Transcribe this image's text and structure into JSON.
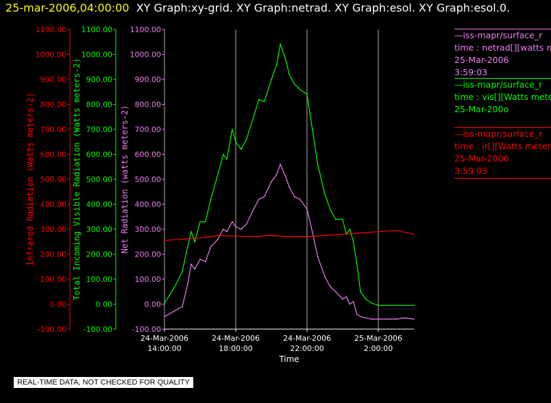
{
  "header": {
    "timestamp": "25-mar-2006,04:00:00",
    "graphs": "XY Graph:xy-grid.  XY Graph:netrad.  XY Graph:esol.  XY Graph:esol.0."
  },
  "legend": [
    {
      "line1": "—iss-mapr/surface_r",
      "line2": "time : netrad[][watts m",
      "line3": "25-Mar-2006",
      "line4": "3:59:03",
      "color": "#ee82ee"
    },
    {
      "line1": "—iss-mapr/surface_r",
      "line2": "time : vis[][Watts mete",
      "line3": "25-Mar-200o",
      "line4": "",
      "color": "#00ff00"
    },
    {
      "line1": "—iss-mapr/surface_r",
      "line2": "time : ir[][Watts meters",
      "line3": "25-Mar-2006",
      "line4": "3:59:03",
      "color": "#ff0000"
    }
  ],
  "disclaimer": "REAL-TIME DATA, NOT CHECKED FOR QUALITY",
  "chart_data": {
    "type": "line",
    "xlabel": "Time",
    "x_ticks": [
      {
        "t": 14,
        "line1": "24-Mar-2006",
        "line2": "14:00:00"
      },
      {
        "t": 18,
        "line1": "24-Mar-2006",
        "line2": "18:00:00"
      },
      {
        "t": 22,
        "line1": "24-Mar-2006",
        "line2": "22:00:00"
      },
      {
        "t": 26,
        "line1": "25-Mar-2006",
        "line2": "2:00:00"
      }
    ],
    "xlim_hours_since_2006_03_24_00": [
      14,
      28
    ],
    "ylim": [
      -100,
      1100
    ],
    "y_ticks": [
      "-100.00",
      "0.00",
      "100.00",
      "200.00",
      "300.00",
      "400.00",
      "500.00",
      "600.00",
      "700.00",
      "800.00",
      "900.00",
      "1000.00",
      "1100.00"
    ],
    "axes": [
      {
        "label": "Infrared Radiation (Watts meters-2)",
        "color": "#ff0000"
      },
      {
        "label": "Total Incoming Visible Radiation (Watts meters-2)",
        "color": "#00ff00"
      },
      {
        "label": "Net Radiation (watts meters-2)",
        "color": "#ee82ee"
      }
    ],
    "grid": "vertical lines at x ticks",
    "series": [
      {
        "color": "#00ff00",
        "x": [
          14.0,
          14.5,
          15.0,
          15.3,
          15.5,
          15.7,
          16.0,
          16.3,
          16.6,
          17.0,
          17.3,
          17.5,
          17.8,
          18.0,
          18.3,
          18.6,
          19.0,
          19.3,
          19.6,
          20.0,
          20.3,
          20.5,
          20.8,
          21.0,
          21.3,
          21.6,
          22.0,
          22.3,
          22.6,
          23.0,
          23.3,
          23.6,
          24.0,
          24.2,
          24.4,
          24.6,
          24.8,
          25.0,
          25.3,
          25.6,
          26.0,
          26.5,
          27.0,
          27.5,
          28.0
        ],
        "values": [
          5,
          60,
          130,
          230,
          290,
          250,
          330,
          330,
          420,
          520,
          600,
          580,
          700,
          650,
          620,
          660,
          750,
          820,
          810,
          900,
          960,
          1040,
          980,
          920,
          880,
          860,
          840,
          700,
          560,
          440,
          380,
          340,
          340,
          280,
          300,
          250,
          160,
          50,
          20,
          5,
          -5,
          -5,
          -5,
          -5,
          -5
        ]
      },
      {
        "color": "#ee82ee",
        "x": [
          14.0,
          14.5,
          15.0,
          15.3,
          15.5,
          15.7,
          16.0,
          16.3,
          16.6,
          17.0,
          17.3,
          17.5,
          17.8,
          18.0,
          18.3,
          18.6,
          19.0,
          19.3,
          19.6,
          20.0,
          20.3,
          20.5,
          20.8,
          21.0,
          21.3,
          21.6,
          22.0,
          22.3,
          22.6,
          23.0,
          23.3,
          23.6,
          24.0,
          24.2,
          24.4,
          24.6,
          24.8,
          25.0,
          25.3,
          25.6,
          26.0,
          26.5,
          27.0,
          27.5,
          28.0
        ],
        "values": [
          -50,
          -30,
          -10,
          80,
          160,
          140,
          180,
          170,
          230,
          260,
          300,
          290,
          330,
          310,
          300,
          320,
          380,
          420,
          430,
          490,
          520,
          560,
          510,
          470,
          430,
          420,
          380,
          290,
          190,
          110,
          70,
          50,
          20,
          30,
          0,
          10,
          -40,
          -50,
          -55,
          -60,
          -60,
          -60,
          -60,
          -55,
          -60
        ]
      },
      {
        "color": "#ff0000",
        "x": [
          14.0,
          15.0,
          16.0,
          17.0,
          18.0,
          19.0,
          20.0,
          21.0,
          22.0,
          23.0,
          24.0,
          25.0,
          26.0,
          27.0,
          28.0
        ],
        "values": [
          255,
          260,
          265,
          275,
          272,
          270,
          275,
          270,
          270,
          275,
          280,
          285,
          290,
          295,
          280
        ]
      }
    ]
  }
}
